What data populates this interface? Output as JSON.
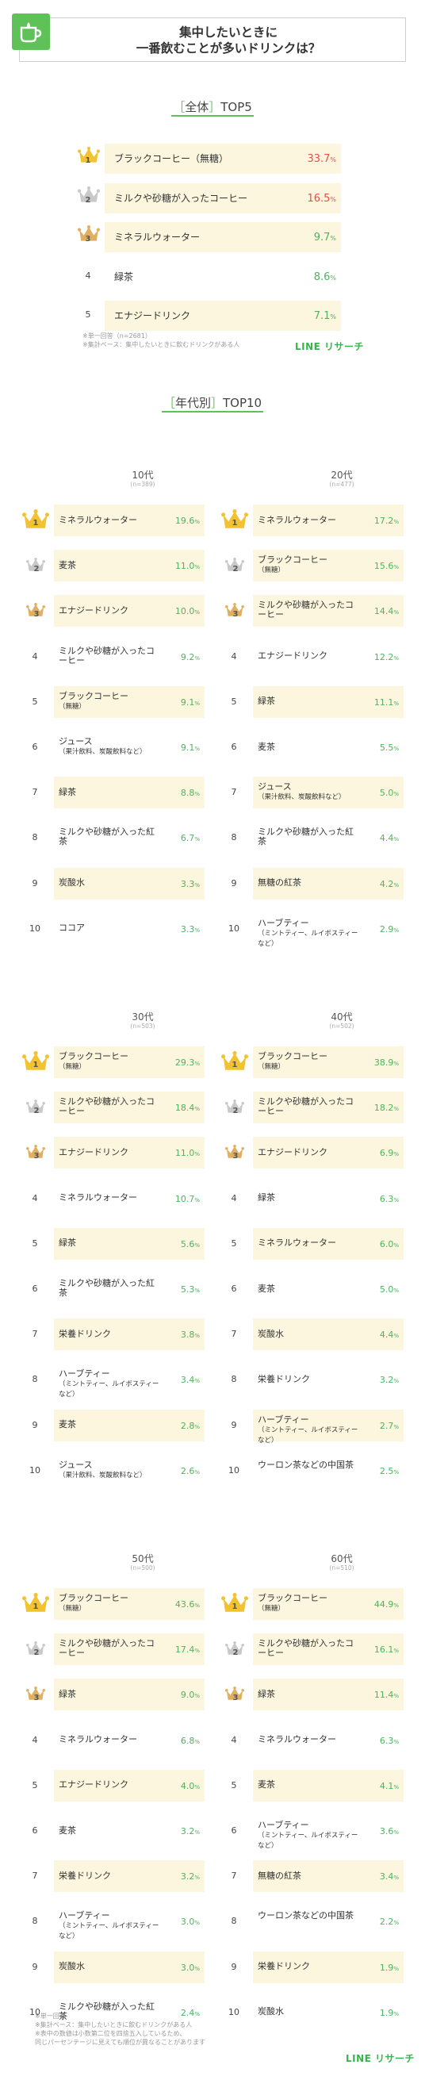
{
  "header": {
    "title_line1": "集中したいときに",
    "title_line2": "一番飲むことが多いドリンクは？",
    "icon": "cup-icon"
  },
  "overall": {
    "title_bracket_open": "［",
    "title_word": "全体",
    "title_bracket_close": "］",
    "title_rest": "TOP5",
    "pct_unit": "%",
    "note_line1": "※単一回答（n=2681）",
    "note_line2": "※集計ベース：集中したいときに飲むドリンクがある人",
    "logo": "LINE リサーチ"
  },
  "by_age": {
    "title_bracket_open": "［",
    "title_word": "年代別",
    "title_bracket_close": "］",
    "title_rest": "TOP10"
  },
  "footer": {
    "note_line1": "※単一回答",
    "note_line2": "※集計ベース：集中したいときに飲むドリンクがある人",
    "note_line3": "※表中の数値は小数第二位を四捨五入しているため、",
    "note_line4": "同じパーセンテージに見えても順位が異なることがあります",
    "logo": "LINE リサーチ"
  },
  "colors": {
    "accent_green": "#5ec259",
    "value_green": "#4eb35f",
    "top_red": "#e0504d",
    "row_bg": "#fbf6dd",
    "gold": "#f2c230",
    "silver": "#c9c9c9",
    "bronze": "#e0b060"
  },
  "chart_data": [
    {
      "type": "table",
      "group": "全体",
      "categories": [
        "ブラックコーヒー（無糖）",
        "ミルクや砂糖が入ったコーヒー",
        "ミネラルウォーター",
        "緑茶",
        "エナジードリンク"
      ],
      "values": [
        33.7,
        16.5,
        9.7,
        8.6,
        7.1
      ]
    },
    {
      "type": "table",
      "group": "10代",
      "n": "(n=389)",
      "categories": [
        "ミネラルウォーター",
        "麦茶",
        "エナジードリンク",
        "ミルクや砂糖が入ったコーヒー",
        "ブラックコーヒー（無糖）",
        "ジュース（果汁飲料、炭酸飲料など）",
        "緑茶",
        "ミルクや砂糖が入った紅茶",
        "炭酸水",
        "ココア"
      ],
      "values": [
        19.6,
        11.0,
        10.0,
        9.2,
        9.1,
        9.1,
        8.8,
        6.7,
        3.3,
        3.3
      ]
    },
    {
      "type": "table",
      "group": "20代",
      "n": "(n=477)",
      "categories": [
        "ミネラルウォーター",
        "ブラックコーヒー（無糖）",
        "ミルクや砂糖が入ったコーヒー",
        "エナジードリンク",
        "緑茶",
        "麦茶",
        "ジュース（果汁飲料、炭酸飲料など）",
        "ミルクや砂糖が入った紅茶",
        "無糖の紅茶",
        "ハーブティー（ミントティー、ルイボスティーなど）"
      ],
      "values": [
        17.2,
        15.6,
        14.4,
        12.2,
        11.1,
        5.5,
        5.0,
        4.4,
        4.2,
        2.9
      ]
    },
    {
      "type": "table",
      "group": "30代",
      "n": "(n=503)",
      "categories": [
        "ブラックコーヒー（無糖）",
        "ミルクや砂糖が入ったコーヒー",
        "エナジードリンク",
        "ミネラルウォーター",
        "緑茶",
        "ミルクや砂糖が入った紅茶",
        "栄養ドリンク",
        "ハーブティー（ミントティー、ルイボスティーなど）",
        "麦茶",
        "ジュース（果汁飲料、炭酸飲料など）"
      ],
      "values": [
        29.3,
        18.4,
        11.0,
        10.7,
        5.6,
        5.3,
        3.8,
        3.4,
        2.8,
        2.6
      ]
    },
    {
      "type": "table",
      "group": "40代",
      "n": "(n=502)",
      "categories": [
        "ブラックコーヒー（無糖）",
        "ミルクや砂糖が入ったコーヒー",
        "エナジードリンク",
        "緑茶",
        "ミネラルウォーター",
        "麦茶",
        "炭酸水",
        "栄養ドリンク",
        "ハーブティー（ミントティー、ルイボスティーなど）",
        "ウーロン茶などの中国茶"
      ],
      "values": [
        38.9,
        18.2,
        6.9,
        6.3,
        6.0,
        5.0,
        4.4,
        3.2,
        2.7,
        2.5
      ]
    },
    {
      "type": "table",
      "group": "50代",
      "n": "(n=500)",
      "categories": [
        "ブラックコーヒー（無糖）",
        "ミルクや砂糖が入ったコーヒー",
        "緑茶",
        "ミネラルウォーター",
        "エナジードリンク",
        "麦茶",
        "栄養ドリンク",
        "ハーブティー（ミントティー、ルイボスティーなど）",
        "炭酸水",
        "ミルクや砂糖が入った紅茶"
      ],
      "values": [
        43.6,
        17.4,
        9.0,
        6.8,
        4.0,
        3.2,
        3.2,
        3.0,
        3.0,
        2.4
      ]
    },
    {
      "type": "table",
      "group": "60代",
      "n": "(n=510)",
      "categories": [
        "ブラックコーヒー（無糖）",
        "ミルクや砂糖が入ったコーヒー",
        "緑茶",
        "ミネラルウォーター",
        "麦茶",
        "ハーブティー（ミントティー、ルイボスティーなど）",
        "無糖の紅茶",
        "ウーロン茶などの中国茶",
        "栄養ドリンク",
        "炭酸水"
      ],
      "values": [
        44.9,
        16.1,
        11.4,
        6.3,
        4.1,
        3.6,
        3.4,
        2.2,
        1.9,
        1.9
      ]
    }
  ]
}
